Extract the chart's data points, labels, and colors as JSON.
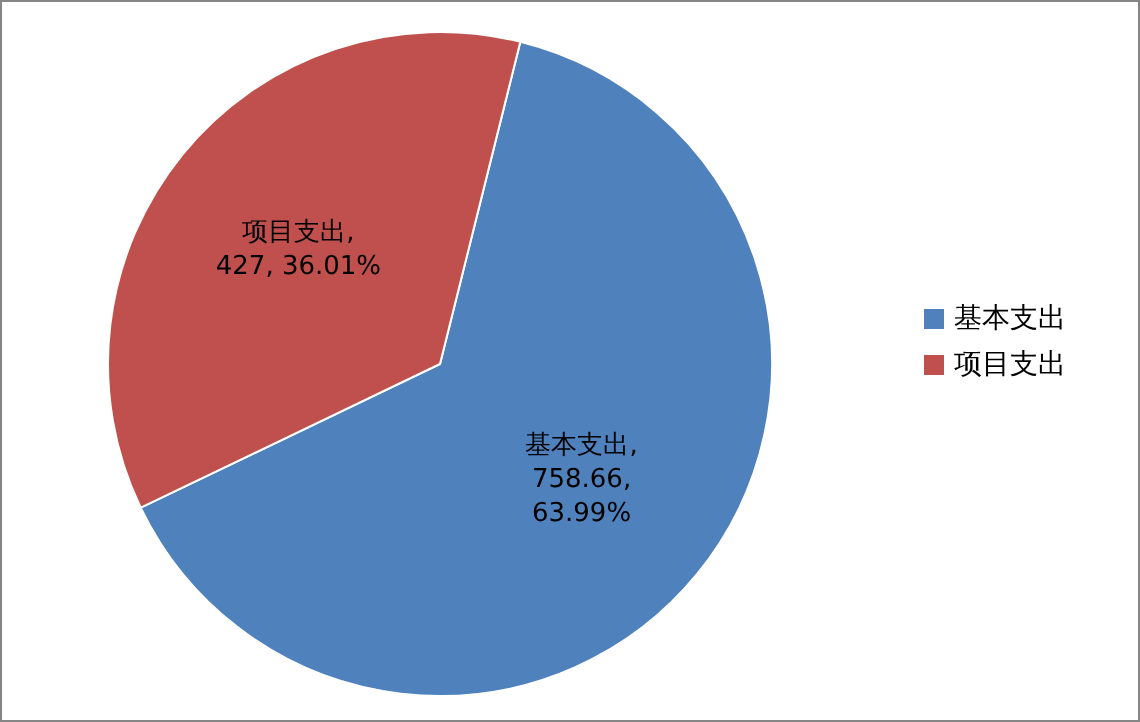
{
  "chart_data": {
    "type": "pie",
    "categories": [
      "基本支出",
      "项目支出"
    ],
    "values": [
      758.66,
      427
    ],
    "colors": [
      "#4f81bd",
      "#c0504d"
    ],
    "value_labels": [
      "基本支出, 758.66, 63.99%",
      "项目支出, 427, 36.01%"
    ],
    "legend": "right"
  }
}
